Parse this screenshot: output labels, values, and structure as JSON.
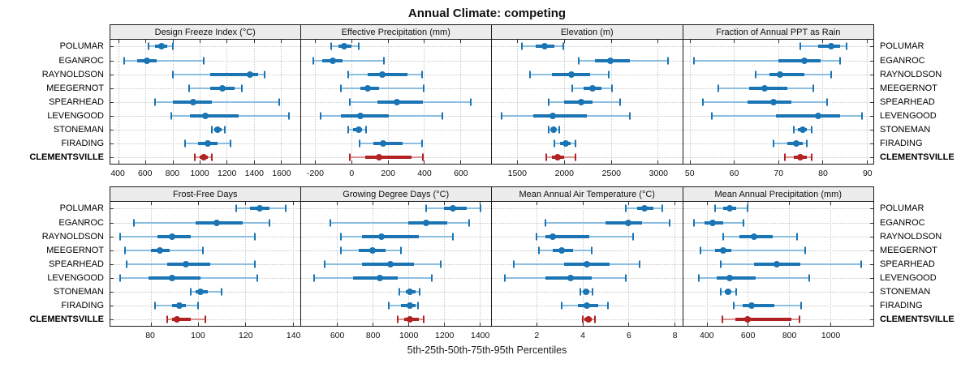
{
  "chart": {
    "title": "Annual Climate: competing",
    "caption": "5th-25th-50th-75th-95th Percentiles"
  },
  "chart_data": {
    "type": "dotplot",
    "title": "Annual Climate: competing",
    "caption": "5th-25th-50th-75th-95th Percentiles",
    "percentiles": [
      5,
      25,
      50,
      75,
      95
    ],
    "rows": [
      "POLUMAR",
      "EGANROC",
      "RAYNOLDSON",
      "MEEGERNOT",
      "SPEARHEAD",
      "LEVENGOOD",
      "STONEMAN",
      "FIRADING",
      "CLEMENTSVILLE"
    ],
    "highlight_row": "CLEMENTSVILLE",
    "colors": {
      "main": "#1B74B3",
      "light": "#8CBEDF",
      "highlight": "#B22222",
      "highlight_light": "#D99292",
      "grid": "#C9C9C9",
      "strip_bg": "#ECECEC",
      "border": "#1A1A1A"
    },
    "panels": [
      {
        "title": "Design Freeze Index (°C)",
        "xlim": [
          340,
          1740
        ],
        "ticks": [
          400,
          600,
          800,
          1000,
          1200,
          1400,
          1600
        ],
        "values": {
          "POLUMAR": [
            620,
            670,
            720,
            760,
            800
          ],
          "EGANROC": [
            440,
            540,
            610,
            680,
            1030
          ],
          "RAYNOLDSON": [
            800,
            1080,
            1370,
            1430,
            1480
          ],
          "MEEGERNOT": [
            920,
            1080,
            1170,
            1260,
            1310
          ],
          "SPEARHEAD": [
            670,
            800,
            950,
            1090,
            1590
          ],
          "LEVENGOOD": [
            790,
            930,
            1040,
            1290,
            1660
          ],
          "STONEMAN": [
            1090,
            1110,
            1130,
            1160,
            1185
          ],
          "FIRADING": [
            890,
            990,
            1060,
            1130,
            1230
          ],
          "CLEMENTSVILLE": [
            965,
            1000,
            1030,
            1060,
            1090
          ]
        }
      },
      {
        "title": "Effective Precipitation (mm)",
        "xlim": [
          -280,
          770
        ],
        "ticks": [
          -200,
          0,
          200,
          400,
          600
        ],
        "values": {
          "POLUMAR": [
            -110,
            -70,
            -40,
            0,
            40
          ],
          "EGANROC": [
            -210,
            -160,
            -105,
            -50,
            180
          ],
          "RAYNOLDSON": [
            -20,
            90,
            170,
            310,
            390
          ],
          "MEEGERNOT": [
            -60,
            50,
            90,
            150,
            400
          ],
          "SPEARHEAD": [
            -10,
            145,
            250,
            395,
            660
          ],
          "LEVENGOOD": [
            -170,
            -60,
            50,
            205,
            500
          ],
          "STONEMAN": [
            -20,
            10,
            40,
            60,
            80
          ],
          "FIRADING": [
            45,
            120,
            175,
            280,
            390
          ],
          "CLEMENTSVILLE": [
            -10,
            75,
            150,
            330,
            395
          ]
        }
      },
      {
        "title": "Elevation (m)",
        "xlim": [
          1230,
          3260
        ],
        "ticks": [
          1500,
          2000,
          2500,
          3000
        ],
        "values": {
          "POLUMAR": [
            1550,
            1695,
            1795,
            1895,
            1995
          ],
          "EGANROC": [
            2160,
            2330,
            2490,
            2700,
            3110
          ],
          "RAYNOLDSON": [
            1640,
            1870,
            2080,
            2280,
            2480
          ],
          "MEEGERNOT": [
            2090,
            2210,
            2300,
            2400,
            2510
          ],
          "SPEARHEAD": [
            1840,
            2000,
            2180,
            2305,
            2600
          ],
          "LEVENGOOD": [
            1330,
            1670,
            1880,
            2240,
            2705
          ],
          "STONEMAN": [
            1840,
            1865,
            1885,
            1915,
            1950
          ],
          "FIRADING": [
            1900,
            1960,
            2020,
            2070,
            2125
          ],
          "CLEMENTSVILLE": [
            1810,
            1870,
            1935,
            2000,
            2120
          ]
        }
      },
      {
        "title": "Fraction of Annual PPT as Rain",
        "xlim": [
          48.5,
          91.5
        ],
        "ticks": [
          50,
          60,
          70,
          80,
          90
        ],
        "values": {
          "POLUMAR": [
            75,
            79,
            82,
            84,
            85.5
          ],
          "EGANROC": [
            51,
            70,
            76,
            79.5,
            84
          ],
          "RAYNOLDSON": [
            65,
            68,
            70.5,
            76,
            82
          ],
          "MEEGERNOT": [
            56.5,
            63.5,
            67,
            72,
            78
          ],
          "SPEARHEAD": [
            53,
            63,
            69,
            73,
            81
          ],
          "LEVENGOOD": [
            55,
            69.5,
            79,
            84,
            89
          ],
          "STONEMAN": [
            73.5,
            74.5,
            75.5,
            76.5,
            77.5
          ],
          "FIRADING": [
            69,
            72,
            74,
            75.5,
            76.5
          ],
          "CLEMENTSVILLE": [
            71.5,
            73.5,
            75,
            76.5,
            77.5
          ]
        }
      },
      {
        "title": "Frost-Free Days",
        "xlim": [
          63,
          143
        ],
        "ticks": [
          80,
          100,
          120,
          140
        ],
        "values": {
          "POLUMAR": [
            116,
            122,
            126,
            130,
            137
          ],
          "EGANROC": [
            73,
            99,
            108,
            119,
            130
          ],
          "RAYNOLDSON": [
            67,
            83,
            89,
            97,
            124
          ],
          "MEEGERNOT": [
            69,
            80,
            84,
            88,
            102
          ],
          "SPEARHEAD": [
            70,
            87,
            95,
            105,
            124
          ],
          "LEVENGOOD": [
            67,
            79,
            89,
            101,
            125
          ],
          "STONEMAN": [
            97,
            99,
            101,
            104,
            110
          ],
          "FIRADING": [
            82,
            89,
            92,
            95,
            100
          ],
          "CLEMENTSVILLE": [
            87,
            89,
            91,
            97,
            103
          ]
        }
      },
      {
        "title": "Growing Degree Days (°C)",
        "xlim": [
          395,
          1465
        ],
        "ticks": [
          600,
          800,
          1000,
          1200,
          1400
        ],
        "values": {
          "POLUMAR": [
            1100,
            1200,
            1250,
            1330,
            1405
          ],
          "EGANROC": [
            560,
            1000,
            1100,
            1220,
            1340
          ],
          "RAYNOLDSON": [
            620,
            740,
            850,
            1060,
            1250
          ],
          "MEEGERNOT": [
            620,
            720,
            800,
            870,
            960
          ],
          "SPEARHEAD": [
            530,
            740,
            900,
            1030,
            1180
          ],
          "LEVENGOOD": [
            470,
            690,
            840,
            940,
            1130
          ],
          "STONEMAN": [
            950,
            985,
            1010,
            1040,
            1065
          ],
          "FIRADING": [
            890,
            960,
            1010,
            1040,
            1055
          ],
          "CLEMENTSVILLE": [
            940,
            975,
            1010,
            1060,
            1085
          ]
        }
      },
      {
        "title": "Mean Annual Air Temperature (°C)",
        "xlim": [
          0.05,
          8.35
        ],
        "ticks": [
          2,
          4,
          6,
          8
        ],
        "values": {
          "POLUMAR": [
            5.9,
            6.4,
            6.7,
            7.1,
            7.5
          ],
          "EGANROC": [
            2.4,
            5.0,
            6.0,
            6.6,
            7.8
          ],
          "RAYNOLDSON": [
            2.0,
            2.4,
            2.7,
            4.3,
            6.2
          ],
          "MEEGERNOT": [
            2.1,
            2.7,
            3.1,
            3.6,
            4.4
          ],
          "SPEARHEAD": [
            1.0,
            3.2,
            4.2,
            5.2,
            6.5
          ],
          "LEVENGOOD": [
            0.6,
            2.4,
            3.5,
            4.4,
            5.9
          ],
          "STONEMAN": [
            3.9,
            4.05,
            4.15,
            4.3,
            4.45
          ],
          "FIRADING": [
            3.1,
            3.8,
            4.2,
            4.7,
            5.1
          ],
          "CLEMENTSVILLE": [
            4.0,
            4.1,
            4.25,
            4.4,
            4.55
          ]
        }
      },
      {
        "title": "Mean Annual Precipitation (mm)",
        "xlim": [
          285,
          1210
        ],
        "ticks": [
          400,
          600,
          800,
          1000
        ],
        "values": {
          "POLUMAR": [
            440,
            480,
            510,
            545,
            600
          ],
          "EGANROC": [
            340,
            390,
            430,
            480,
            580
          ],
          "RAYNOLDSON": [
            480,
            560,
            630,
            720,
            840
          ],
          "MEEGERNOT": [
            370,
            440,
            480,
            520,
            880
          ],
          "SPEARHEAD": [
            470,
            630,
            740,
            855,
            1150
          ],
          "LEVENGOOD": [
            360,
            450,
            510,
            640,
            900
          ],
          "STONEMAN": [
            470,
            490,
            505,
            520,
            545
          ],
          "FIRADING": [
            530,
            575,
            620,
            730,
            860
          ],
          "CLEMENTSVILLE": [
            475,
            540,
            600,
            810,
            850
          ]
        }
      }
    ]
  }
}
